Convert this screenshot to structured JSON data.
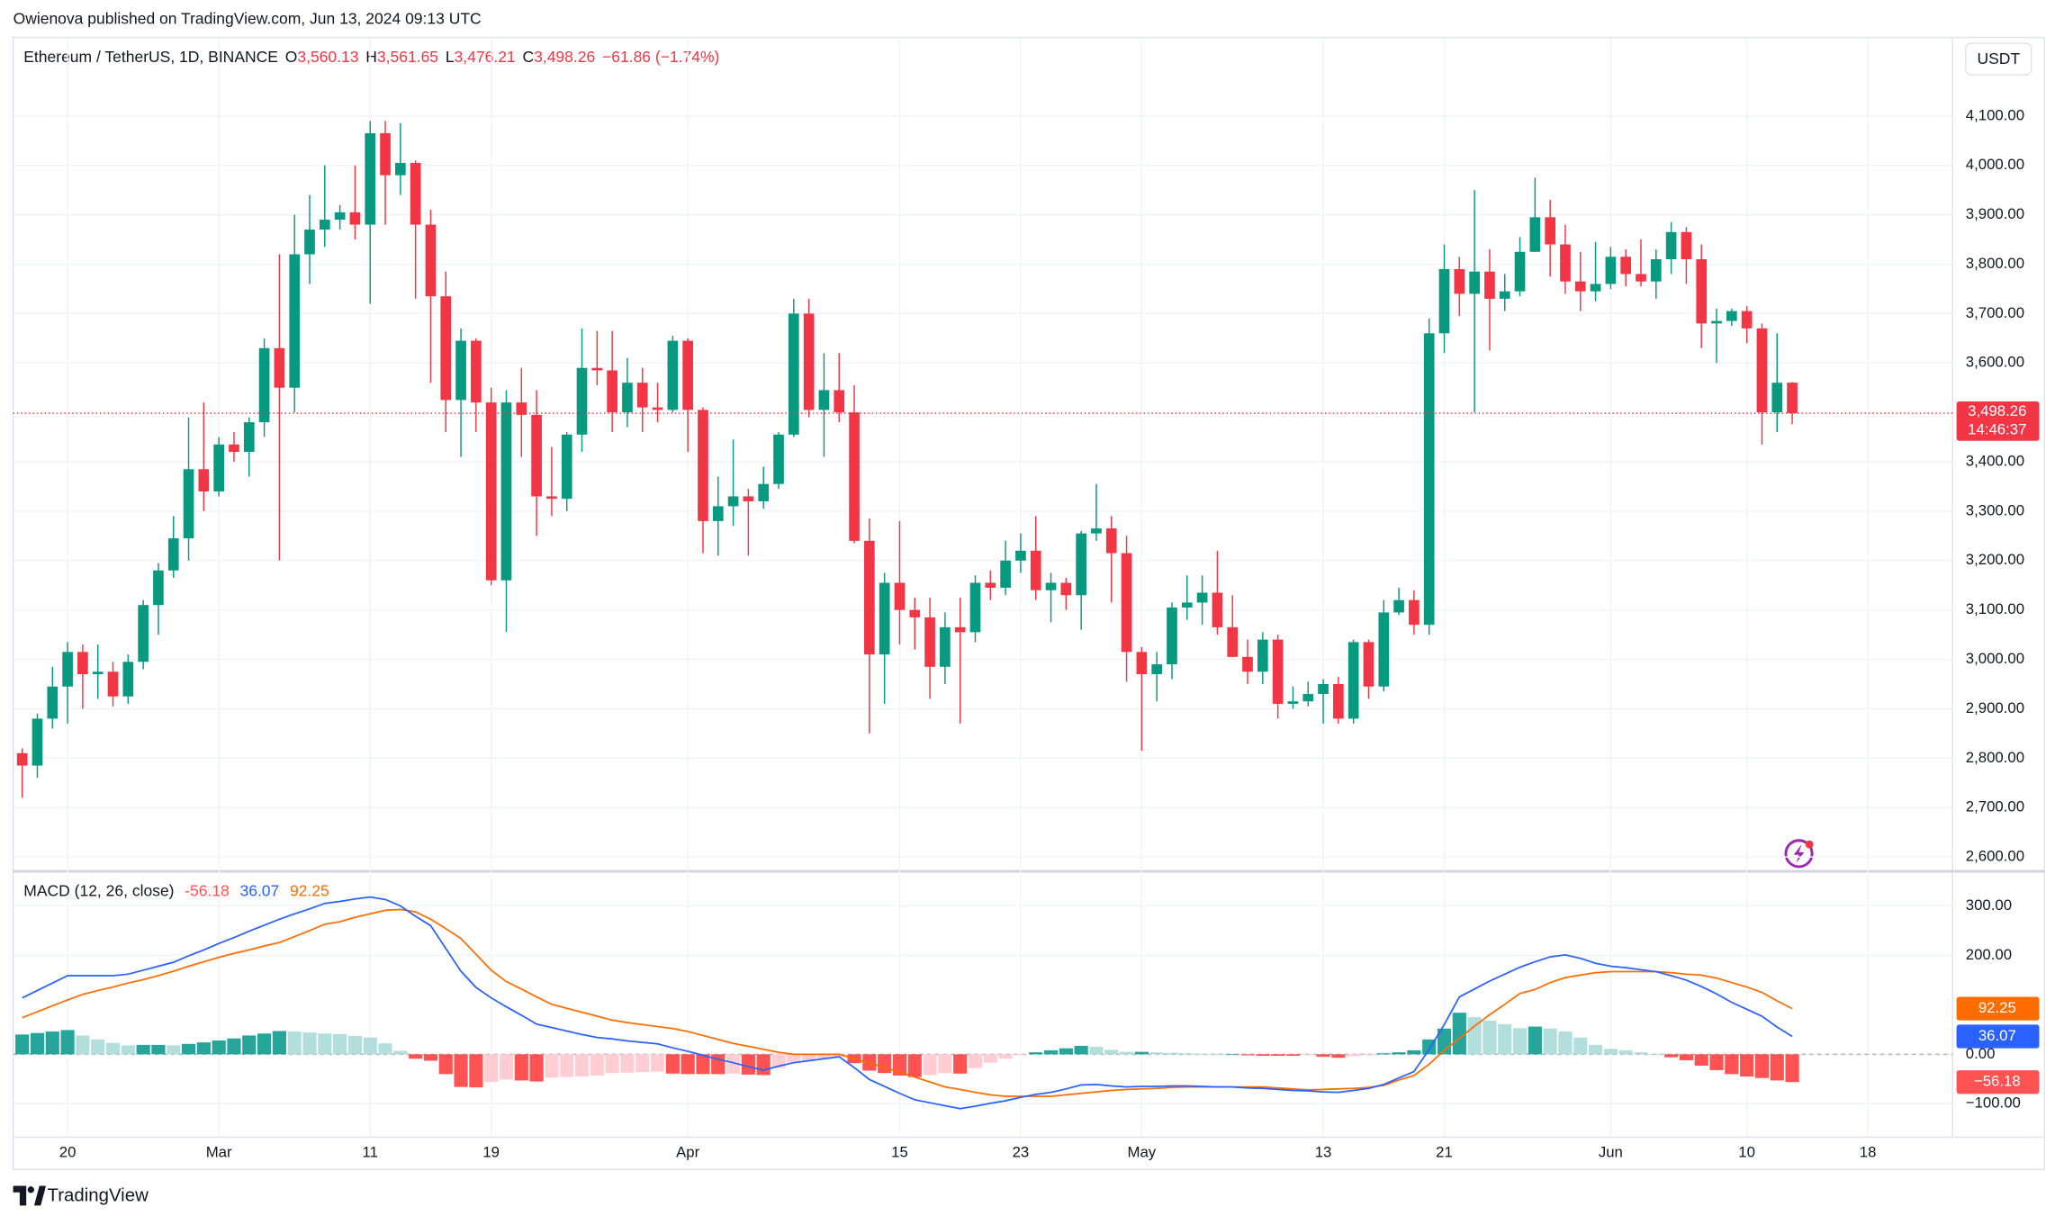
{
  "attribution": "Owienova published on TradingView.com, Jun 13, 2024 09:13 UTC",
  "footer_brand": "TradingView",
  "currency_button": "USDT",
  "chart_data": [
    {
      "type": "candlestick",
      "header": {
        "symbol": "Ethereum / TetherUS, 1D, BINANCE",
        "open_label": "O",
        "open": "3,560.13",
        "high_label": "H",
        "high": "3,561.65",
        "low_label": "L",
        "low": "3,476.21",
        "close_label": "C",
        "close": "3,498.26",
        "change": "−61.86 (−1.74%)"
      },
      "up_color": "#089981",
      "down_color": "#f23645",
      "open": [
        2810,
        2785,
        2880,
        2945,
        3015,
        2970,
        2975,
        2925,
        2995,
        3110,
        3180,
        3245,
        3385,
        3340,
        3435,
        3420,
        3480,
        3630,
        3550,
        3820,
        3870,
        3890,
        3905,
        3880,
        4065,
        3980,
        4005,
        3880,
        3735,
        3525,
        3645,
        3520,
        3160,
        3520,
        3495,
        3330,
        3325,
        3455,
        3590,
        3585,
        3500,
        3560,
        3510,
        3505,
        3645,
        3505,
        3280,
        3310,
        3330,
        3320,
        3355,
        3455,
        3700,
        3505,
        3545,
        3500,
        3240,
        3010,
        3155,
        3100,
        3085,
        2985,
        3065,
        3055,
        3155,
        3145,
        3200,
        3220,
        3140,
        3155,
        3130,
        3255,
        3265,
        3215,
        3015,
        2970,
        2990,
        3105,
        3115,
        3135,
        3065,
        3005,
        2975,
        3040,
        2910,
        2915,
        2930,
        2950,
        2880,
        3035,
        2945,
        3095,
        3120,
        3070,
        3660,
        3790,
        3740,
        3785,
        3730,
        3745,
        3825,
        3895,
        3840,
        3765,
        3745,
        3760,
        3815,
        3780,
        3765,
        3810,
        3865,
        3810,
        3680,
        3685,
        3705,
        3670,
        3500,
        3560.13
      ],
      "high": [
        2820,
        2890,
        2985,
        3035,
        3030,
        3030,
        2995,
        3010,
        3120,
        3195,
        3290,
        3490,
        3520,
        3450,
        3460,
        3490,
        3650,
        3820,
        3900,
        3940,
        4000,
        3920,
        4000,
        4090,
        4090,
        4085,
        4010,
        3910,
        3785,
        3670,
        3650,
        3550,
        3545,
        3590,
        3545,
        3430,
        3460,
        3670,
        3665,
        3665,
        3610,
        3590,
        3560,
        3655,
        3650,
        3510,
        3370,
        3445,
        3345,
        3390,
        3460,
        3730,
        3730,
        3620,
        3620,
        3555,
        3285,
        3175,
        3280,
        3125,
        3125,
        3095,
        3125,
        3170,
        3180,
        3240,
        3255,
        3290,
        3175,
        3165,
        3260,
        3355,
        3290,
        3250,
        3025,
        3015,
        3115,
        3170,
        3170,
        3220,
        3130,
        3040,
        3055,
        3050,
        2945,
        2955,
        2960,
        2965,
        3040,
        3040,
        3120,
        3145,
        3140,
        3690,
        3840,
        3815,
        3950,
        3830,
        3780,
        3855,
        3975,
        3930,
        3880,
        3825,
        3845,
        3835,
        3830,
        3850,
        3830,
        3885,
        3875,
        3840,
        3710,
        3710,
        3715,
        3680,
        3660,
        3561.65
      ],
      "low": [
        2720,
        2760,
        2860,
        2870,
        2900,
        2920,
        2905,
        2910,
        2980,
        3050,
        3165,
        3200,
        3300,
        3330,
        3400,
        3370,
        3450,
        3200,
        3500,
        3760,
        3835,
        3870,
        3850,
        3720,
        3880,
        3940,
        3730,
        3560,
        3460,
        3410,
        3460,
        3150,
        3055,
        3410,
        3250,
        3290,
        3300,
        3420,
        3555,
        3460,
        3470,
        3460,
        3480,
        3500,
        3420,
        3215,
        3210,
        3270,
        3210,
        3305,
        3345,
        3450,
        3490,
        3410,
        3480,
        3235,
        2850,
        2910,
        3030,
        3020,
        2920,
        2950,
        2870,
        3035,
        3120,
        3130,
        3175,
        3120,
        3075,
        3100,
        3060,
        3240,
        3115,
        2955,
        2815,
        2915,
        2960,
        3080,
        3070,
        3050,
        3005,
        2950,
        2950,
        2880,
        2900,
        2905,
        2870,
        2870,
        2870,
        2920,
        2935,
        3090,
        3050,
        3050,
        3620,
        3695,
        3500,
        3625,
        3705,
        3735,
        3825,
        3775,
        3740,
        3705,
        3725,
        3750,
        3755,
        3755,
        3730,
        3780,
        3760,
        3630,
        3600,
        3675,
        3640,
        3435,
        3460,
        3476.21
      ],
      "close": [
        2785,
        2880,
        2945,
        3015,
        2970,
        2975,
        2925,
        2995,
        3110,
        3180,
        3245,
        3385,
        3340,
        3435,
        3420,
        3480,
        3630,
        3550,
        3820,
        3870,
        3890,
        3905,
        3880,
        4065,
        3980,
        4005,
        3880,
        3735,
        3525,
        3645,
        3520,
        3160,
        3520,
        3495,
        3330,
        3325,
        3455,
        3590,
        3585,
        3500,
        3560,
        3510,
        3505,
        3645,
        3505,
        3280,
        3310,
        3330,
        3320,
        3355,
        3455,
        3700,
        3505,
        3545,
        3500,
        3240,
        3010,
        3155,
        3100,
        3085,
        2985,
        3065,
        3055,
        3155,
        3145,
        3200,
        3220,
        3140,
        3155,
        3130,
        3255,
        3265,
        3215,
        3015,
        2970,
        2990,
        3105,
        3115,
        3135,
        3065,
        3005,
        2975,
        3040,
        2910,
        2915,
        2930,
        2950,
        2880,
        3035,
        2945,
        3095,
        3120,
        3070,
        3660,
        3790,
        3740,
        3785,
        3730,
        3745,
        3825,
        3895,
        3840,
        3765,
        3745,
        3760,
        3815,
        3780,
        3765,
        3810,
        3865,
        3810,
        3680,
        3685,
        3705,
        3670,
        3500,
        3560,
        3498.26
      ],
      "last_price_label": "3,498.26",
      "countdown": "14:46:37",
      "xlim": [
        -0.6,
        127.6
      ],
      "xticks": [
        {
          "value": 3,
          "label": "20"
        },
        {
          "value": 13,
          "label": "Mar"
        },
        {
          "value": 23,
          "label": "11"
        },
        {
          "value": 31,
          "label": "19"
        },
        {
          "value": 44,
          "label": "Apr"
        },
        {
          "value": 58,
          "label": "15"
        },
        {
          "value": 66,
          "label": "23"
        },
        {
          "value": 74,
          "label": "May"
        },
        {
          "value": 86,
          "label": "13"
        },
        {
          "value": 94,
          "label": "21"
        },
        {
          "value": 105,
          "label": "Jun"
        },
        {
          "value": 114,
          "label": "10"
        },
        {
          "value": 122,
          "label": "18"
        }
      ],
      "ylim": [
        2575,
        4255
      ],
      "yticks": [
        {
          "value": 2600,
          "label": "2,600.00"
        },
        {
          "value": 2700,
          "label": "2,700.00"
        },
        {
          "value": 2800,
          "label": "2,800.00"
        },
        {
          "value": 2900,
          "label": "2,900.00"
        },
        {
          "value": 3000,
          "label": "3,000.00"
        },
        {
          "value": 3100,
          "label": "3,100.00"
        },
        {
          "value": 3200,
          "label": "3,200.00"
        },
        {
          "value": 3300,
          "label": "3,300.00"
        },
        {
          "value": 3400,
          "label": "3,400.00"
        },
        {
          "value": 3600,
          "label": "3,600.00"
        },
        {
          "value": 3700,
          "label": "3,700.00"
        },
        {
          "value": 3800,
          "label": "3,800.00"
        },
        {
          "value": 3900,
          "label": "3,900.00"
        },
        {
          "value": 4000,
          "label": "4,000.00"
        },
        {
          "value": 4100,
          "label": "4,100.00"
        }
      ],
      "grid": true
    },
    {
      "type": "macd",
      "title": "MACD (12, 26, close)",
      "histogram": {
        "up_strong": "#26a69a",
        "up_light": "#b2dfdb",
        "down_strong": "#ff5252",
        "down_light": "#ffcdd2",
        "values": [
          40,
          43,
          46,
          49,
          38,
          30,
          23,
          18,
          19,
          19,
          18,
          21,
          24,
          28,
          32,
          38,
          42,
          47,
          46,
          44,
          42,
          41,
          37,
          34,
          22,
          7,
          -9,
          -13,
          -40,
          -66,
          -67,
          -56,
          -51,
          -53,
          -55,
          -47,
          -46,
          -45,
          -43,
          -38,
          -37,
          -36,
          -35,
          -39,
          -40,
          -40,
          -40,
          -39,
          -41,
          -42,
          -28,
          -17,
          -13,
          -9,
          -5,
          -18,
          -33,
          -38,
          -43,
          -46,
          -42,
          -38,
          -39,
          -28,
          -17,
          -9,
          -2,
          4,
          8,
          12,
          17,
          15,
          9,
          5,
          5,
          4,
          3,
          2,
          1,
          0,
          0,
          -2,
          -3,
          -3,
          -3,
          -2,
          -5,
          -7,
          -4,
          -2,
          2,
          4,
          8,
          30,
          52,
          84,
          75,
          68,
          61,
          53,
          56,
          52,
          46,
          34,
          19,
          11,
          8,
          4,
          0,
          -6,
          -12,
          -23,
          -32,
          -40,
          -45,
          -48,
          -53,
          -56.18
        ],
        "last_value_label": "−56.18"
      },
      "macd": {
        "color": "#2962ff",
        "values": [
          114,
          129,
          144,
          159,
          159,
          159,
          159,
          162,
          170,
          178,
          186,
          199,
          211,
          224,
          236,
          249,
          261,
          273,
          284,
          294,
          305,
          309,
          314,
          318,
          313,
          300,
          279,
          260,
          214,
          168,
          135,
          114,
          96,
          79,
          61,
          54,
          47,
          40,
          34,
          31,
          27,
          24,
          21,
          13,
          6,
          -2,
          -10,
          -17,
          -25,
          -32,
          -24,
          -17,
          -13,
          -9,
          -5,
          -27,
          -51,
          -65,
          -79,
          -92,
          -98,
          -104,
          -110,
          -105,
          -99,
          -94,
          -87,
          -81,
          -77,
          -70,
          -62,
          -61,
          -64,
          -66,
          -65,
          -65,
          -64,
          -64,
          -65,
          -66,
          -66,
          -68,
          -69,
          -71,
          -73,
          -74,
          -76,
          -77,
          -73,
          -69,
          -61,
          -48,
          -35,
          10,
          60,
          116,
          132,
          148,
          162,
          176,
          187,
          197,
          201,
          194,
          184,
          178,
          175,
          171,
          167,
          159,
          150,
          137,
          122,
          105,
          91,
          77,
          55,
          36.07
        ]
      },
      "signal": {
        "color": "#ff6d00",
        "values": [
          74,
          86,
          98,
          110,
          121,
          129,
          136,
          144,
          151,
          159,
          168,
          178,
          187,
          196,
          204,
          211,
          219,
          226,
          238,
          250,
          263,
          268,
          277,
          284,
          291,
          293,
          288,
          273,
          254,
          234,
          202,
          170,
          147,
          132,
          116,
          101,
          93,
          85,
          77,
          69,
          64,
          60,
          56,
          52,
          46,
          38,
          30,
          22,
          16,
          10,
          4,
          0,
          0,
          0,
          0,
          -9,
          -18,
          -27,
          -36,
          -46,
          -56,
          -66,
          -71,
          -77,
          -82,
          -85,
          -85,
          -85,
          -85,
          -82,
          -79,
          -76,
          -73,
          -71,
          -70,
          -69,
          -67,
          -66,
          -66,
          -66,
          -66,
          -66,
          -66,
          -68,
          -70,
          -72,
          -71,
          -70,
          -69,
          -67,
          -63,
          -52,
          -43,
          -20,
          8,
          32,
          57,
          80,
          101,
          123,
          131,
          145,
          155,
          160,
          165,
          167,
          167,
          167,
          167,
          165,
          162,
          160,
          154,
          145,
          136,
          125,
          108,
          92.25
        ]
      },
      "ylim": [
        -165,
        366
      ],
      "yticks": [
        {
          "value": -100,
          "label": "−100.00"
        },
        {
          "value": 0,
          "label": "0.00"
        },
        {
          "value": 200,
          "label": "200.00"
        },
        {
          "value": 300,
          "label": "300.00"
        }
      ],
      "zero_line": true
    }
  ]
}
